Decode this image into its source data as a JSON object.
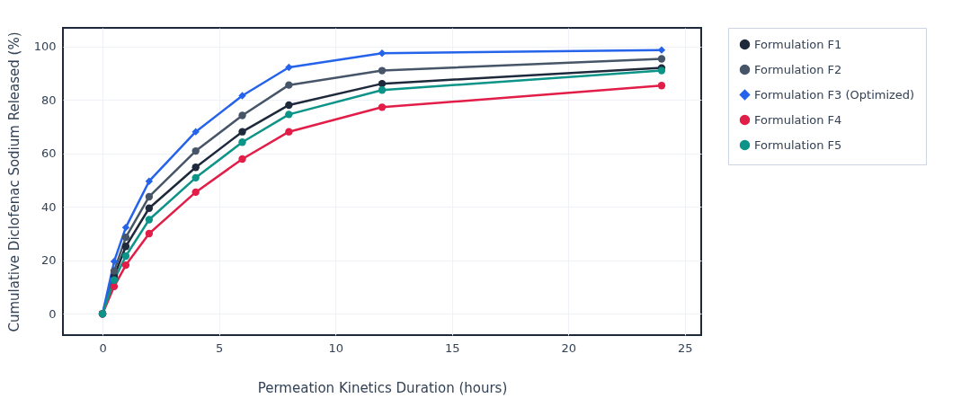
{
  "chart_data": {
    "type": "line",
    "xlabel": "Permeation Kinetics Duration (hours)",
    "ylabel": "Cumulative Diclofenac Sodium Released (%)",
    "x": [
      0,
      0.5,
      1,
      2,
      4,
      6,
      8,
      12,
      24
    ],
    "series": [
      {
        "name": "Formulation F1",
        "color": "#1e293b",
        "marker": "circle",
        "values": [
          0,
          14,
          25.2,
          39.5,
          54.8,
          68.1,
          78.1,
          86.1,
          92
        ]
      },
      {
        "name": "Formulation F2",
        "color": "#475569",
        "marker": "circle",
        "values": [
          0,
          16,
          28.6,
          43.8,
          60.9,
          74.2,
          85.6,
          91,
          95.4
        ]
      },
      {
        "name": "Formulation F3 (Optimized)",
        "color": "#2563eb",
        "marker": "diamond",
        "values": [
          0,
          19.6,
          32.3,
          49.6,
          68.1,
          81.6,
          92.2,
          97.5,
          98.7
        ]
      },
      {
        "name": "Formulation F4",
        "color": "#e11d48",
        "marker": "circle",
        "values": [
          0,
          10.2,
          18.2,
          30,
          45.5,
          57.9,
          68.1,
          77.3,
          85.4
        ]
      },
      {
        "name": "Formulation F5",
        "color": "#0d9488",
        "marker": "circle",
        "values": [
          0,
          12.6,
          21.6,
          35.2,
          50.9,
          64.2,
          74.6,
          83.7,
          91
        ]
      }
    ],
    "xlim": [
      -1.7,
      25.7
    ],
    "ylim": [
      -8,
      107
    ],
    "xticks": [
      0,
      5,
      10,
      15,
      20,
      25
    ],
    "yticks": [
      0,
      20,
      40,
      60,
      80,
      100
    ],
    "grid": true,
    "legend": "right",
    "line_style": "solid"
  }
}
